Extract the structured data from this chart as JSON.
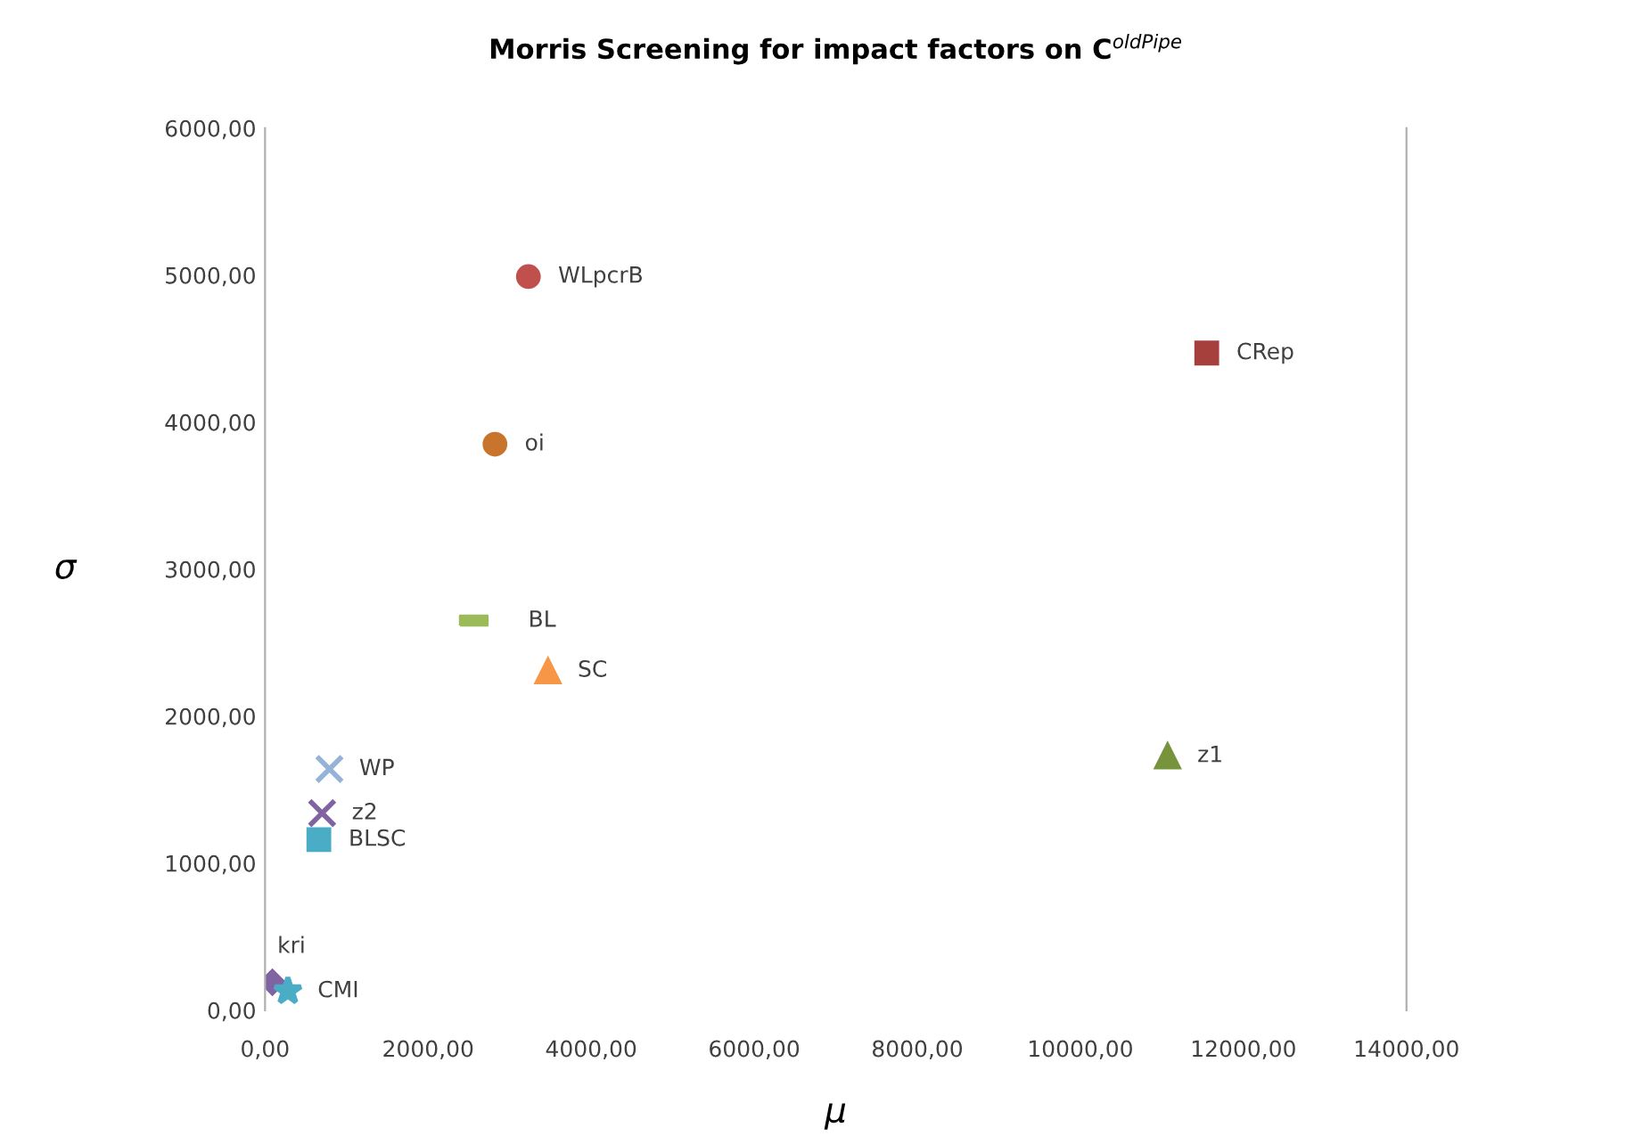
{
  "chart_data": {
    "type": "scatter",
    "title": "Morris Screening for impact factors on C$^{oldPipe}$",
    "xlabel": "μ",
    "ylabel": "σ",
    "xlim": [
      0,
      14000
    ],
    "ylim": [
      0,
      6000
    ],
    "xticks": [
      {
        "value": 0,
        "label": "0,00"
      },
      {
        "value": 2000,
        "label": "2000,00"
      },
      {
        "value": 4000,
        "label": "4000,00"
      },
      {
        "value": 6000,
        "label": "6000,00"
      },
      {
        "value": 8000,
        "label": "8000,00"
      },
      {
        "value": 10000,
        "label": "10000,00"
      },
      {
        "value": 12000,
        "label": "12000,00"
      },
      {
        "value": 14000,
        "label": "14000,00"
      }
    ],
    "yticks": [
      {
        "value": 0,
        "label": "0,00"
      },
      {
        "value": 1000,
        "label": "1000,00"
      },
      {
        "value": 2000,
        "label": "2000,00"
      },
      {
        "value": 3000,
        "label": "3000,00"
      },
      {
        "value": 4000,
        "label": "4000,00"
      },
      {
        "value": 5000,
        "label": "5000,00"
      },
      {
        "value": 6000,
        "label": "6000,00"
      }
    ],
    "grid": false,
    "legend": false,
    "series": [
      {
        "name": "WLpcrB",
        "color": "#c0504d",
        "marker": "circle",
        "x": [
          3230
        ],
        "values": [
          4990
        ]
      },
      {
        "name": "CRep",
        "color": "#a5403d",
        "marker": "square",
        "x": [
          11550
        ],
        "values": [
          4470
        ]
      },
      {
        "name": "oi",
        "color": "#c8742c",
        "marker": "circle",
        "x": [
          2820
        ],
        "values": [
          3850
        ]
      },
      {
        "name": "BL",
        "color": "#9bbb59",
        "x": [
          2560
        ],
        "values": [
          2650
        ]
      },
      {
        "name": "SC",
        "color": "#f79646",
        "marker": "triangle",
        "x": [
          3470
        ],
        "values": [
          2310
        ]
      },
      {
        "name": "z1",
        "color": "#77933c",
        "marker": "triangle",
        "x": [
          11070
        ],
        "values": [
          1730
        ]
      },
      {
        "name": "WP",
        "color": "#95b3d7",
        "marker": "cross",
        "x": [
          790
        ],
        "values": [
          1640
        ]
      },
      {
        "name": "z2",
        "color": "#8064a2",
        "marker": "cross",
        "x": [
          700
        ],
        "values": [
          1340
        ]
      },
      {
        "name": "BLSC",
        "color": "#4bacc6",
        "marker": "square",
        "x": [
          660
        ],
        "values": [
          1160
        ]
      },
      {
        "name": "kri",
        "color": "#8064a2",
        "marker": "diamond",
        "x": [
          90
        ],
        "values": [
          190
        ]
      },
      {
        "name": "CMI",
        "color": "#4bacc6",
        "marker": "star",
        "x": [
          280
        ],
        "values": [
          130
        ]
      }
    ]
  }
}
